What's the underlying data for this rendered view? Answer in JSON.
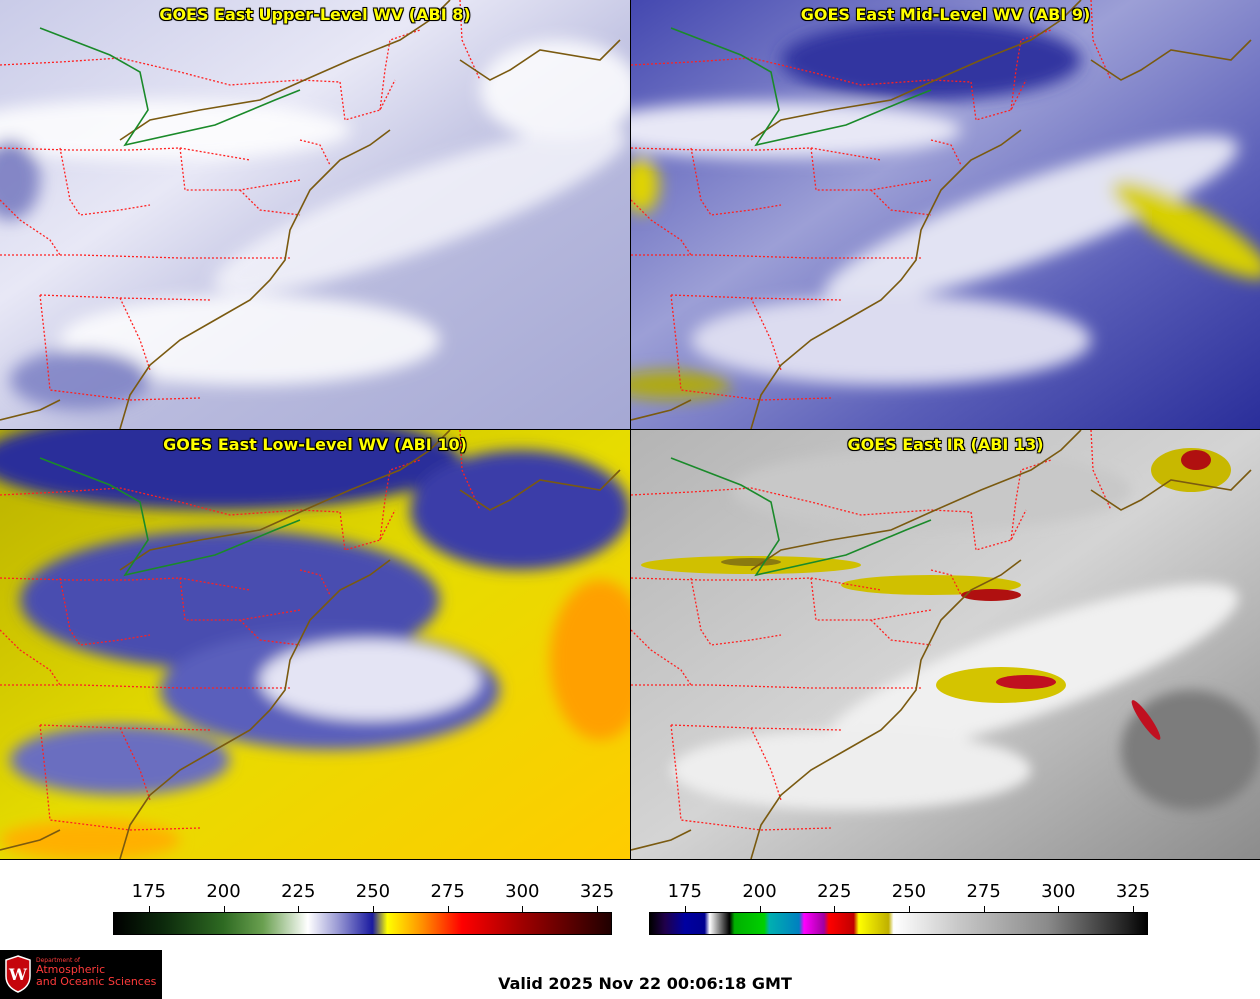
{
  "panels": [
    {
      "title": "GOES East Upper-Level WV (ABI 8)",
      "scheme": "upper"
    },
    {
      "title": "GOES East Mid-Level WV (ABI 9)",
      "scheme": "mid"
    },
    {
      "title": "GOES East Low-Level WV (ABI 10)",
      "scheme": "low"
    },
    {
      "title": "GOES East IR (ABI 13)",
      "scheme": "ir"
    }
  ],
  "colorbars": {
    "wv": {
      "ticks": [
        "175",
        "200",
        "225",
        "250",
        "275",
        "300",
        "325"
      ]
    },
    "ir": {
      "ticks": [
        "175",
        "200",
        "225",
        "250",
        "275",
        "300",
        "325"
      ]
    }
  },
  "logo": {
    "line1": "Department of",
    "line2": "Atmospheric",
    "line3": "and Oceanic Sciences",
    "seal": "W"
  },
  "valid": "Valid 2025 Nov 22 00:06:18 GMT",
  "colors": {
    "state_borders": "#ff2020",
    "coastline": "#7a5a10",
    "canada_border": "#1a8a2a",
    "title_text": "#ffff00"
  }
}
